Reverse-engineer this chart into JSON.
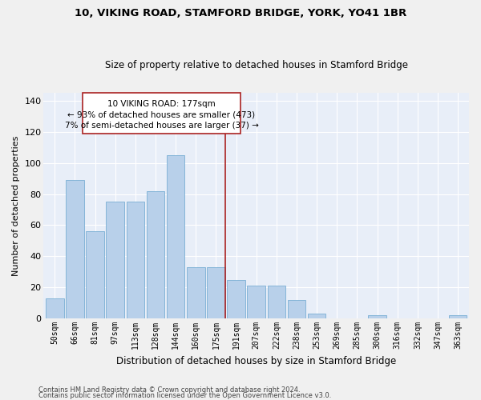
{
  "title": "10, VIKING ROAD, STAMFORD BRIDGE, YORK, YO41 1BR",
  "subtitle": "Size of property relative to detached houses in Stamford Bridge",
  "xlabel": "Distribution of detached houses by size in Stamford Bridge",
  "ylabel": "Number of detached properties",
  "categories": [
    "50sqm",
    "66sqm",
    "81sqm",
    "97sqm",
    "113sqm",
    "128sqm",
    "144sqm",
    "160sqm",
    "175sqm",
    "191sqm",
    "207sqm",
    "222sqm",
    "238sqm",
    "253sqm",
    "269sqm",
    "285sqm",
    "300sqm",
    "316sqm",
    "332sqm",
    "347sqm",
    "363sqm"
  ],
  "values": [
    13,
    89,
    56,
    75,
    75,
    82,
    105,
    33,
    33,
    25,
    21,
    21,
    12,
    3,
    0,
    0,
    2,
    0,
    0,
    0,
    2
  ],
  "bar_color": "#b8d0ea",
  "bar_edge_color": "#7aafd4",
  "background_color": "#e8eef8",
  "grid_color": "#ffffff",
  "vline_color": "#aa2222",
  "annotation_box_color": "#aa2222",
  "ylim": [
    0,
    145
  ],
  "yticks": [
    0,
    20,
    40,
    60,
    80,
    100,
    120,
    140
  ],
  "footer1": "Contains HM Land Registry data © Crown copyright and database right 2024.",
  "footer2": "Contains public sector information licensed under the Open Government Licence v3.0."
}
